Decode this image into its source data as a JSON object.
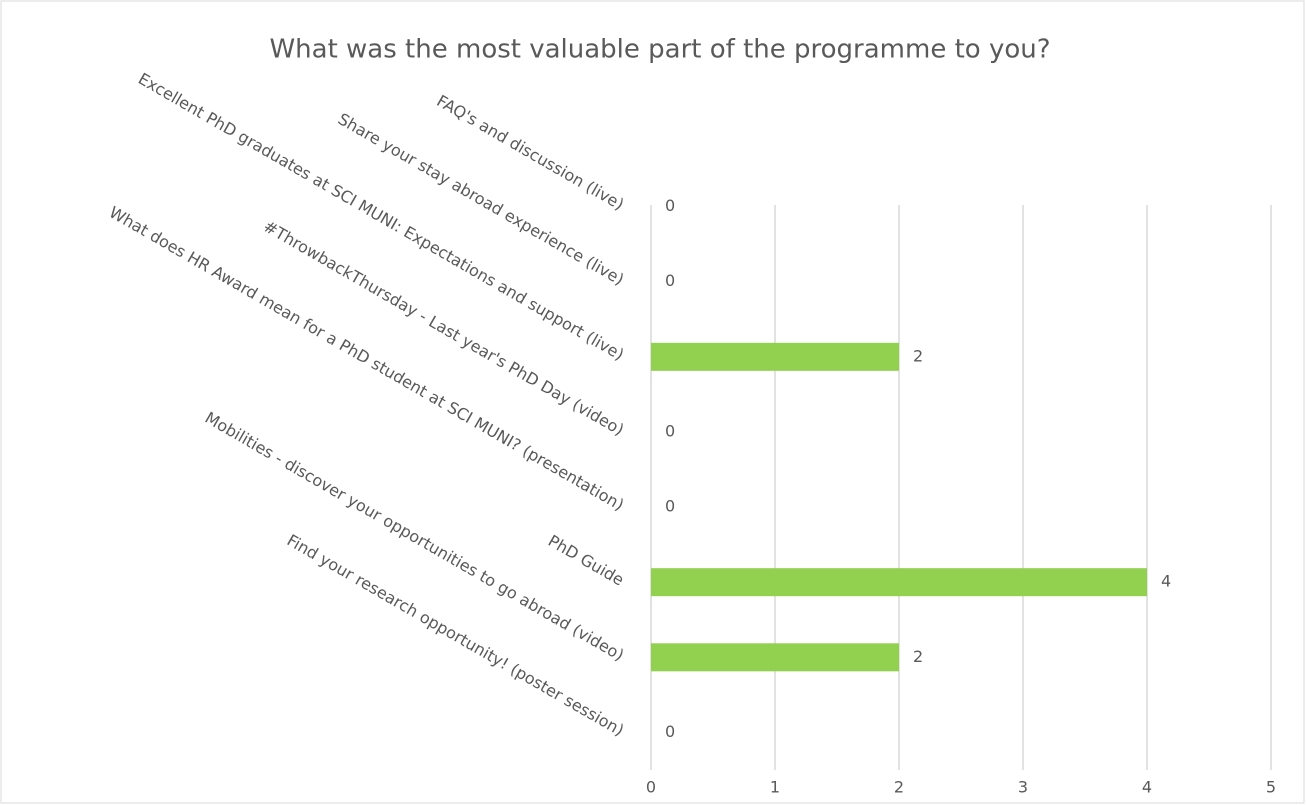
{
  "chart_data": {
    "type": "bar",
    "orientation": "horizontal",
    "title": "What was the most valuable part of the programme to you?",
    "categories": [
      "FAQ's and discussion (live)",
      "Share your stay abroad experience (live)",
      "Excellent PhD graduates at SCI MUNI: Expectations and support (live)",
      "#ThrowbackThursday - Last year's PhD Day (video)",
      "What does HR Award mean for a PhD student at SCI MUNI? (presentation)",
      "PhD Guide",
      "Mobilities - discover your opportunities to go abroad (video)",
      "Find your research opportunity! (poster session)"
    ],
    "values": [
      0,
      0,
      2,
      0,
      0,
      4,
      2,
      0
    ],
    "color": "#92d050",
    "xlim": [
      0,
      5
    ],
    "xticks": [
      0,
      1,
      2,
      3,
      4,
      5
    ],
    "grid": true,
    "data_labels": true
  }
}
